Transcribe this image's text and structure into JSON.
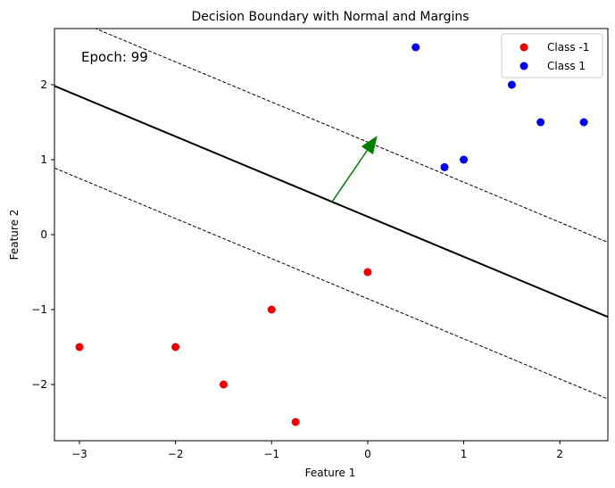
{
  "chart_data": {
    "type": "scatter",
    "title": "Decision Boundary with Normal and Margins",
    "xlabel": "Feature 1",
    "ylabel": "Feature 2",
    "xlim": [
      -3.26,
      2.5
    ],
    "ylim": [
      -2.75,
      2.75
    ],
    "xticks": [
      -3,
      -2,
      -1,
      0,
      1,
      2
    ],
    "yticks": [
      -2,
      -1,
      0,
      1,
      2
    ],
    "xtick_labels": [
      "−3",
      "−2",
      "−1",
      "0",
      "1",
      "2"
    ],
    "ytick_labels": [
      "−2",
      "−1",
      "0",
      "1",
      "2"
    ],
    "grid": false,
    "legend_position": "top-right",
    "annotation": "Epoch: 99",
    "series": [
      {
        "name": "Class -1",
        "color": "#ee0000",
        "points": [
          [
            -3,
            -1.5
          ],
          [
            -2,
            -1.5
          ],
          [
            -1.5,
            -2
          ],
          [
            -1,
            -1
          ],
          [
            -0.75,
            -2.5
          ],
          [
            0,
            -0.5
          ]
        ]
      },
      {
        "name": "Class 1",
        "color": "#0000ee",
        "points": [
          [
            0.5,
            2.5
          ],
          [
            0.8,
            0.9
          ],
          [
            1,
            1
          ],
          [
            1.5,
            2
          ],
          [
            1.8,
            1.5
          ],
          [
            2.25,
            1.5
          ]
        ]
      }
    ],
    "decision_boundary": {
      "slope": -0.535,
      "intercept": 0.24,
      "color": "#000000"
    },
    "margins": [
      {
        "slope": -0.535,
        "intercept": 1.235,
        "color": "#000000",
        "style": "dashed"
      },
      {
        "slope": -0.535,
        "intercept": -0.855,
        "color": "#000000",
        "style": "dashed"
      }
    ],
    "normal_vector": {
      "start": [
        -0.37,
        0.44
      ],
      "end": [
        0.1,
        1.32
      ],
      "color": "#008000"
    }
  }
}
